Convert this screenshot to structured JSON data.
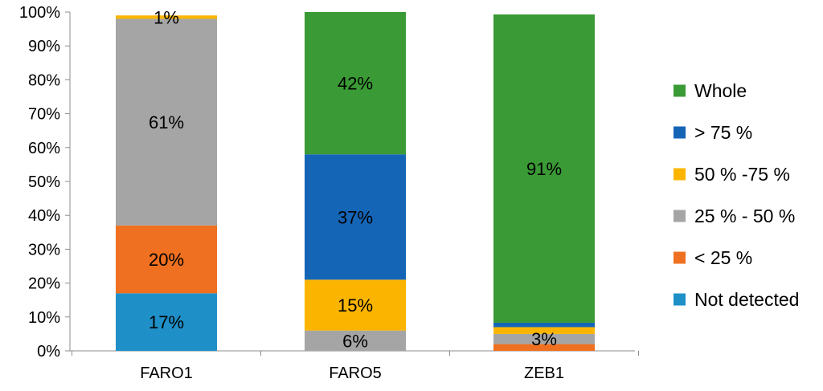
{
  "chart_data": {
    "type": "bar",
    "stacked": true,
    "percent_stacked": true,
    "categories": [
      "FARO1",
      "FARO5",
      "ZEB1"
    ],
    "series": [
      {
        "name": "Not detected",
        "color": "#1f8fc8",
        "values": [
          17,
          0,
          0
        ]
      },
      {
        "name": "< 25 %",
        "color": "#ee7020",
        "values": [
          20,
          0,
          2
        ]
      },
      {
        "name": "25 % - 50 %",
        "color": "#a5a5a5",
        "values": [
          61,
          6,
          3
        ]
      },
      {
        "name": "50 % -75 %",
        "color": "#fbb500",
        "values": [
          1,
          15,
          2
        ]
      },
      {
        "name": "> 75 %",
        "color": "#1565b7",
        "values": [
          0,
          37,
          1.3
        ]
      },
      {
        "name": "Whole",
        "color": "#3a9a35",
        "values": [
          0,
          42,
          91
        ]
      }
    ],
    "data_labels": [
      {
        "category": "FARO1",
        "series": "Not detected",
        "text": "17%"
      },
      {
        "category": "FARO1",
        "series": "< 25 %",
        "text": "20%"
      },
      {
        "category": "FARO1",
        "series": "25 % - 50 %",
        "text": "61%"
      },
      {
        "category": "FARO1",
        "series": "50 % -75 %",
        "text": "1%"
      },
      {
        "category": "FARO5",
        "series": "25 % - 50 %",
        "text": "6%"
      },
      {
        "category": "FARO5",
        "series": "50 % -75 %",
        "text": "15%"
      },
      {
        "category": "FARO5",
        "series": "> 75 %",
        "text": "37%"
      },
      {
        "category": "FARO5",
        "series": "Whole",
        "text": "42%"
      },
      {
        "category": "ZEB1",
        "series": "25 % - 50 %",
        "text": "3%"
      },
      {
        "category": "ZEB1",
        "series": "Whole",
        "text": "91%"
      }
    ],
    "yticks": [
      "0%",
      "10%",
      "20%",
      "30%",
      "40%",
      "50%",
      "60%",
      "70%",
      "80%",
      "90%",
      "100%"
    ],
    "ylim": [
      0,
      100
    ],
    "grid": false,
    "legend": {
      "position": "right",
      "order": [
        "Whole",
        "> 75 %",
        "50 % -75 %",
        "25 % - 50 %",
        "< 25 %",
        "Not detected"
      ]
    },
    "title": "",
    "xlabel": "",
    "ylabel": ""
  }
}
